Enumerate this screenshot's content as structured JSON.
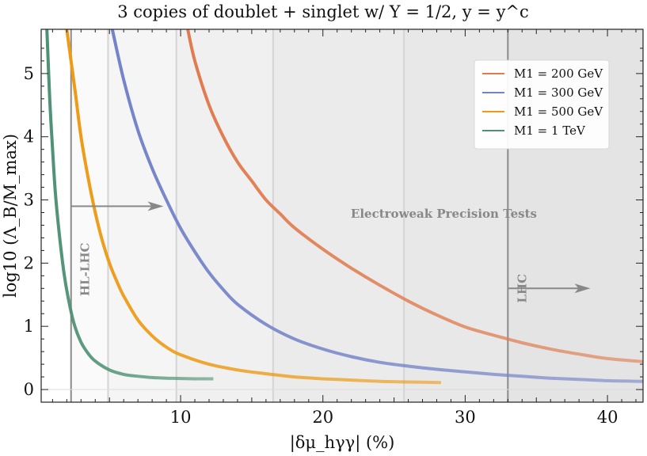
{
  "chart_data": {
    "type": "line",
    "title": "3 copies of doublet + singlet w/ Y = 1/2,  y = y^c",
    "xlabel": "|δμ_hγγ| (%)",
    "ylabel": "log10 (Λ_B/M_max)",
    "xlim": [
      0.2,
      42.5
    ],
    "ylim": [
      -0.2,
      5.7
    ],
    "xticks": [
      10,
      20,
      30,
      40
    ],
    "yticks": [
      0,
      1,
      2,
      3,
      4,
      5
    ],
    "grid": false,
    "legend_position": "top-right",
    "series": [
      {
        "name": "M1 = 200 GeV",
        "color": "#e07b4e",
        "x": [
          10.5,
          11,
          12,
          13,
          14,
          15,
          16,
          17,
          18,
          20,
          22,
          24,
          26,
          28,
          30,
          32,
          34,
          36,
          38,
          40,
          42.5
        ],
        "y": [
          5.7,
          5.2,
          4.5,
          4.0,
          3.6,
          3.3,
          3.0,
          2.78,
          2.56,
          2.22,
          1.92,
          1.65,
          1.4,
          1.18,
          0.99,
          0.86,
          0.74,
          0.64,
          0.56,
          0.49,
          0.44
        ]
      },
      {
        "name": "M1 = 300 GeV",
        "color": "#7383c8",
        "x": [
          5.2,
          6,
          7,
          8,
          9,
          10,
          11,
          12,
          13,
          14,
          16,
          18,
          20,
          22,
          24,
          26,
          28,
          30,
          32,
          34,
          36,
          38,
          40,
          42.5
        ],
        "y": [
          5.7,
          4.9,
          4.1,
          3.5,
          3.0,
          2.55,
          2.18,
          1.85,
          1.58,
          1.35,
          1.03,
          0.8,
          0.64,
          0.52,
          0.43,
          0.37,
          0.32,
          0.28,
          0.24,
          0.21,
          0.18,
          0.16,
          0.14,
          0.13
        ]
      },
      {
        "name": "M1 = 500 GeV",
        "color": "#ee9a14",
        "x": [
          2.0,
          2.3,
          2.6,
          3.0,
          3.5,
          4.0,
          4.5,
          5.0,
          5.5,
          6,
          7,
          8,
          9,
          10,
          12,
          14,
          16,
          18,
          20,
          22,
          24,
          26,
          28.3
        ],
        "y": [
          5.7,
          5.2,
          4.7,
          4.0,
          3.35,
          2.8,
          2.35,
          2.0,
          1.72,
          1.48,
          1.1,
          0.85,
          0.67,
          0.55,
          0.4,
          0.31,
          0.25,
          0.2,
          0.17,
          0.15,
          0.13,
          0.12,
          0.11
        ]
      },
      {
        "name": "M1 = 1 TeV",
        "color": "#4e9174",
        "x": [
          0.6,
          0.8,
          1.0,
          1.2,
          1.5,
          1.8,
          2.1,
          2.5,
          3.0,
          3.5,
          4.0,
          5.0,
          6.0,
          7.0,
          8.0,
          9.0,
          10.0,
          11.0,
          12.3
        ],
        "y": [
          5.7,
          4.6,
          3.8,
          3.1,
          2.4,
          1.85,
          1.45,
          1.05,
          0.75,
          0.57,
          0.45,
          0.31,
          0.24,
          0.21,
          0.19,
          0.18,
          0.175,
          0.17,
          0.17
        ]
      }
    ],
    "vertical_lines": [
      {
        "x": 2.3,
        "label": "HL-LHC",
        "arrow_to_x": 8.8,
        "arrow_y": 2.9
      },
      {
        "x": 4.9
      },
      {
        "x": 9.7
      },
      {
        "x": 16.5
      },
      {
        "x": 25.7
      },
      {
        "x": 33.0,
        "label": "LHC",
        "arrow_to_x": 38.8,
        "arrow_y": 1.6
      }
    ],
    "annotations": [
      {
        "text": "Electroweak Precision Tests",
        "x": 28.5,
        "y": 2.72
      }
    ]
  }
}
